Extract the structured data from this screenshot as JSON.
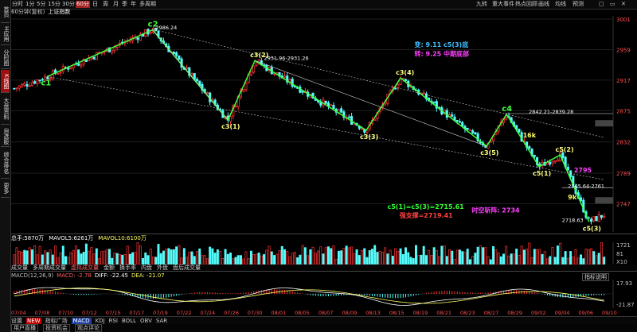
{
  "left_sidebar": [
    "首页",
    "H应用",
    "分时图",
    "K线图",
    "大盘资料",
    "自选股",
    "综合排名",
    "更多"
  ],
  "toolbar": {
    "timeframes": [
      "分时",
      "1分",
      "5分",
      "15分",
      "30分",
      "60分",
      "日",
      "周",
      "月",
      "季",
      "年",
      "多周期"
    ],
    "active_timeframe": "60分",
    "right_items": [
      "九转",
      "重大事件",
      "热点回顾",
      "画线",
      "均线",
      "预测"
    ]
  },
  "subtitle": {
    "adjust": "60分钟(复权)",
    "index": "上证指数"
  },
  "chart_data": [
    {
      "type": "candlestick",
      "title": "",
      "xlabel": "",
      "ylabel": "",
      "ylim": [
        2718,
        3001
      ],
      "y_ticks": [
        3001,
        2959,
        2917,
        2875,
        2832,
        2789,
        2747
      ],
      "x_ticks": [
        "07/04",
        "07/08",
        "07/10",
        "07/12",
        "07/15",
        "07/17",
        "07/19",
        "07/22",
        "07/24",
        "07/26",
        "07/30",
        "08/01",
        "08/05",
        "08/07",
        "08/09",
        "08/13",
        "08/15",
        "08/19",
        "08/21",
        "08/23",
        "08/27",
        "08/29",
        "09/02",
        "09/04",
        "09/06",
        "09/10"
      ],
      "wave_points": [
        {
          "label": "c1",
          "x": 0.06,
          "y": 2922
        },
        {
          "label": "c2",
          "x": 0.235,
          "y": 2986.24
        },
        {
          "label": "c3(1)",
          "x": 0.36,
          "y": 2862
        },
        {
          "label": "c3(2)",
          "x": 0.405,
          "y": 2944
        },
        {
          "label": "c3(3)",
          "x": 0.59,
          "y": 2848
        },
        {
          "label": "c3(4)",
          "x": 0.647,
          "y": 2920
        },
        {
          "label": "c3(5)",
          "x": 0.79,
          "y": 2826
        },
        {
          "label": "c4",
          "x": 0.823,
          "y": 2870
        },
        {
          "label": "c5(1)",
          "x": 0.877,
          "y": 2798
        },
        {
          "label": "c5(2)",
          "x": 0.912,
          "y": 2814
        },
        {
          "label": "c5(3)",
          "x": 0.96,
          "y": 2722
        }
      ],
      "annotations": [
        {
          "text": "2986.24",
          "x": 0.24,
          "y": 2987,
          "color": "#ffffff"
        },
        {
          "text": "2931.96-2931.26",
          "x": 0.42,
          "y": 2945,
          "color": "#ffffff"
        },
        {
          "text": "2842.21-2839.28",
          "x": 0.86,
          "y": 2871,
          "color": "#ffffff"
        },
        {
          "text": "2765.64-2761",
          "x": 0.925,
          "y": 2769,
          "color": "#ffffff"
        },
        {
          "text": "2718.63",
          "x": 0.915,
          "y": 2722,
          "color": "#ffffff"
        },
        {
          "text": "变: 9.11 c5(3)底",
          "x": 0.67,
          "y": 2963,
          "color": "#40c0ff"
        },
        {
          "text": "转: 9.25 中期底部",
          "x": 0.67,
          "y": 2950,
          "color": "#ff40ff"
        },
        {
          "text": "16k",
          "x": 0.85,
          "y": 2838,
          "color": "#ffff60"
        },
        {
          "text": "2795",
          "x": 0.935,
          "y": 2790,
          "color": "#ff40ff"
        },
        {
          "text": "9k",
          "x": 0.925,
          "y": 2753,
          "color": "#ffff60"
        },
        {
          "text": "c5(1)=c5(3)=2715.61",
          "x": 0.625,
          "y": 2740,
          "color": "#30ff30"
        },
        {
          "text": "强支撑=2719.41",
          "x": 0.645,
          "y": 2728,
          "color": "#ff4040"
        },
        {
          "text": "时空斩阵: 2734",
          "x": 0.765,
          "y": 2735,
          "color": "#ff40ff"
        }
      ]
    },
    {
      "type": "bar",
      "title": "",
      "legend": [
        {
          "name": "总手",
          "value": "5870万",
          "color": "#ffffff"
        },
        {
          "name": "MAVOL5",
          "value": "6261万",
          "color": "#ffffff"
        },
        {
          "name": "MAVOL10",
          "value": "6100万",
          "color": "#ffff60"
        }
      ],
      "y_ticks": [
        "1721",
        "81",
        "X10"
      ]
    },
    {
      "type": "bar",
      "title": "",
      "legend": [
        {
          "name": "MACD(12,26,9)",
          "value": "",
          "color": "#c0c0c0"
        },
        {
          "name": "MACD",
          "value": "-2.78",
          "color": "#ff6060"
        },
        {
          "name": "DIFF",
          "value": "-22.45",
          "color": "#ffffff"
        },
        {
          "name": "DEA",
          "value": "-21.07",
          "color": "#ffff60"
        }
      ],
      "y_ticks": [
        "17.93",
        "-21.87"
      ]
    }
  ],
  "volume_tabs": [
    "成交量",
    "多周期成交量",
    "虚拟成交量",
    "金额",
    "换手率",
    "内盘",
    "外盘",
    "盘后成交量"
  ],
  "active_volume_tab": "虚拟成交量",
  "macd_help": "指标说明",
  "bottom_tabs": [
    "设置",
    "NEW",
    "指标广场",
    "MACD",
    "KDJ",
    "RSI",
    "BOLL",
    "OBV",
    "SAR"
  ],
  "active_bottom_tab": "MACD",
  "info_tabs": [
    "用户直播",
    "投资机会",
    "观点评论"
  ]
}
